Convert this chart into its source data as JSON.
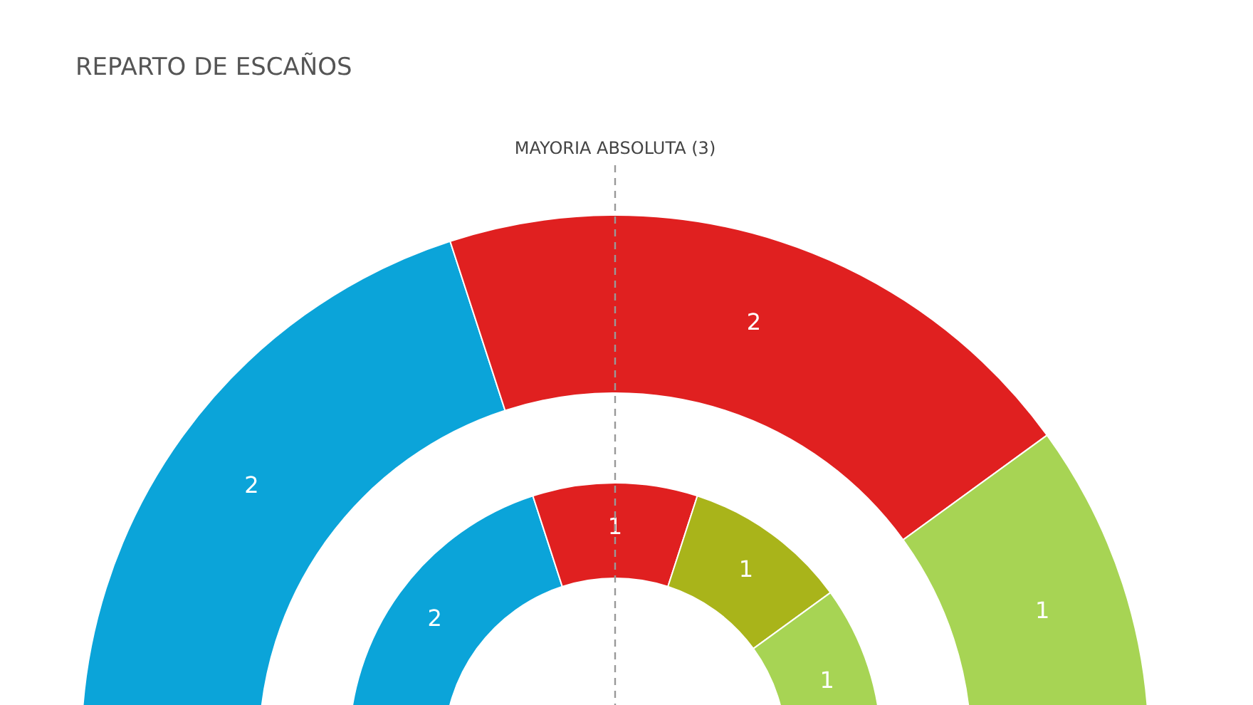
{
  "chart_data": {
    "type": "donut",
    "title": "REPARTO DE ESCAÑOS",
    "categories": [
      null,
      null,
      null,
      null
    ],
    "series": [
      {
        "values": [
          2,
          2,
          null,
          1
        ],
        "colors": [
          "#0ba4d9",
          "#e02020",
          "#a9b41a",
          "#a7d454"
        ]
      },
      {
        "values": [
          2,
          1,
          1,
          1
        ],
        "colors": [
          "#0ba4d9",
          "#e02020",
          "#a9b41a",
          "#a7d454"
        ]
      }
    ],
    "data_labels": true,
    "annotations": [
      "MAYORIA ABSOLUTA (3)"
    ]
  }
}
